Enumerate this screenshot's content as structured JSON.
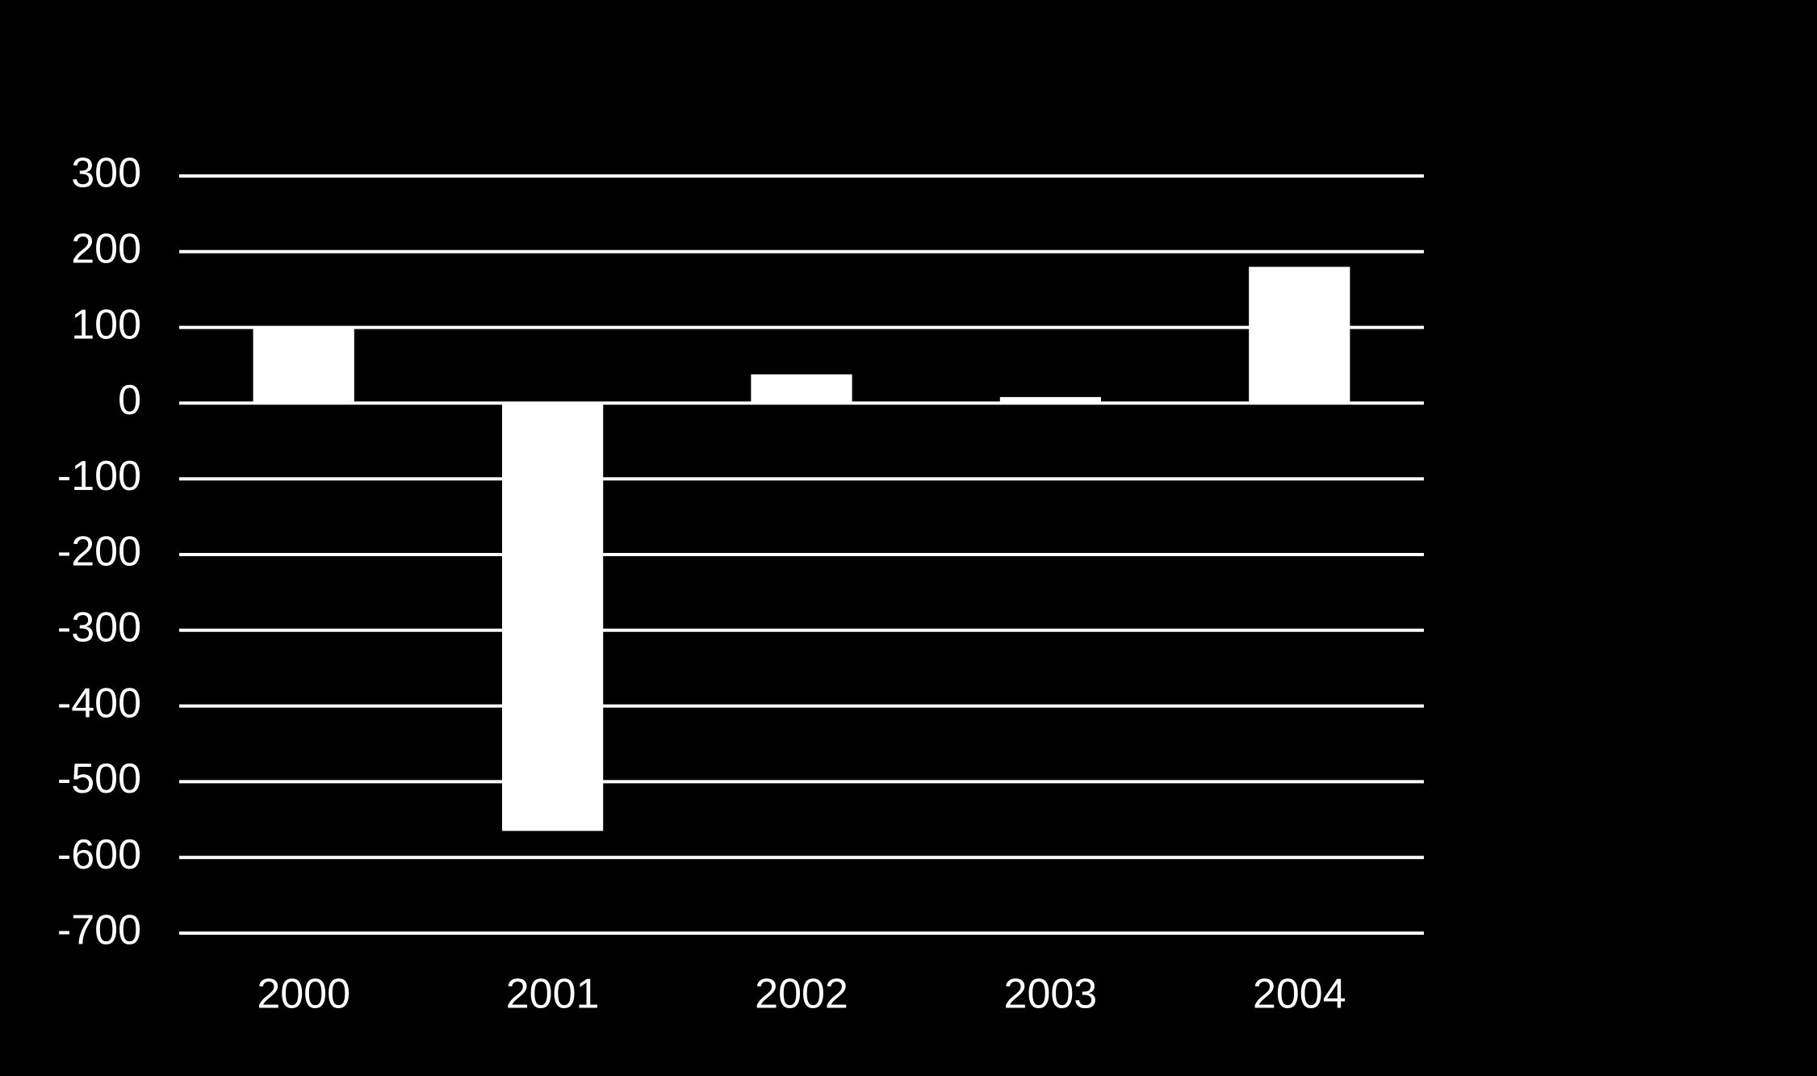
{
  "chart_data": {
    "type": "bar",
    "categories": [
      "2000",
      "2001",
      "2002",
      "2003",
      "2004"
    ],
    "values": [
      100,
      -565,
      38,
      8,
      180
    ],
    "color": "#ffffff",
    "ylim": [
      -700,
      300
    ],
    "yticks": [
      300,
      200,
      100,
      0,
      -100,
      -200,
      -300,
      -400,
      -500,
      -600,
      -700
    ],
    "grid": true
  }
}
